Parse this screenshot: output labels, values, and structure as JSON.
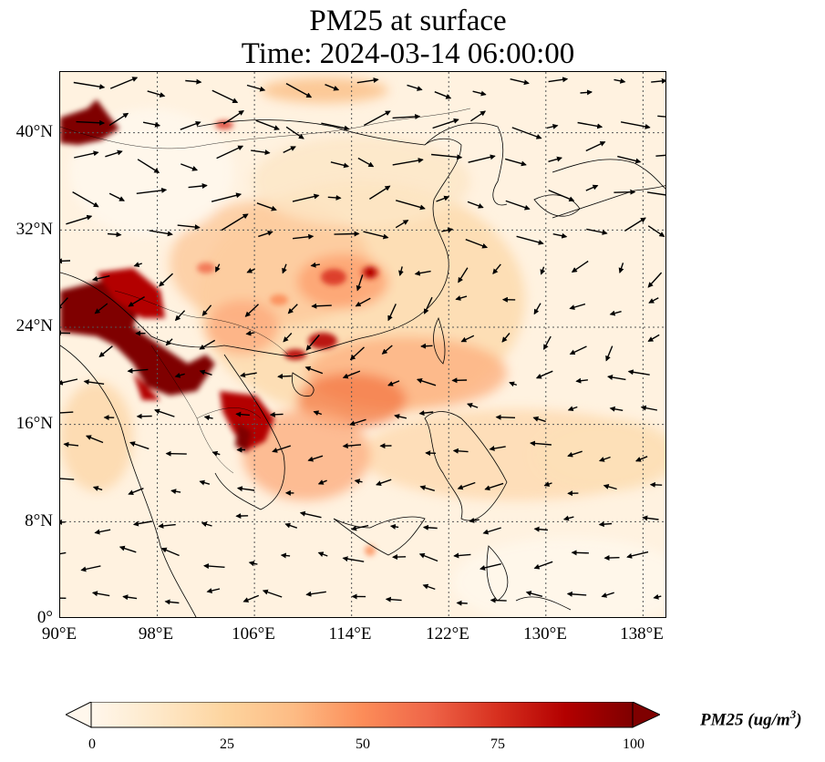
{
  "title": {
    "line1": "PM25 at surface",
    "line2": "Time: 2024-03-14 06:00:00"
  },
  "map": {
    "lon_range": [
      90,
      140
    ],
    "lat_range": [
      0,
      45
    ],
    "lon_ticks": [
      "90°E",
      "98°E",
      "106°E",
      "114°E",
      "122°E",
      "130°E",
      "138°E"
    ],
    "lat_ticks": [
      "0°",
      "8°N",
      "16°N",
      "24°N",
      "32°N",
      "40°N"
    ],
    "gridlines": true,
    "gridline_style": "dotted",
    "field_variable": "PM25",
    "vector_overlay": "wind arrows"
  },
  "colorbar": {
    "label": "PM25 (ug/m3)",
    "label_base": "PM25 (ug/m",
    "label_sup": "3",
    "label_close": ")",
    "min": 0,
    "max": 100,
    "ticks": [
      "0",
      "25",
      "50",
      "75",
      "100"
    ],
    "extend": "both",
    "colormap": "OrRd",
    "colors": [
      "#fff7ec",
      "#fee8c8",
      "#fdd49e",
      "#fdbb84",
      "#fc8d59",
      "#ef6548",
      "#d7301f",
      "#b30000",
      "#7f0000"
    ]
  }
}
